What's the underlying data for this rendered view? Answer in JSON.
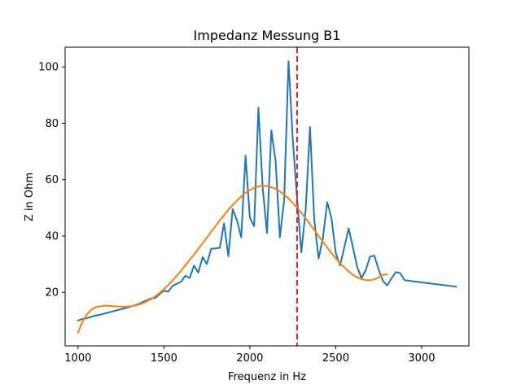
{
  "chart_data": {
    "type": "line",
    "title": "Impedanz Messung B1",
    "xlabel": "Frequenz in Hz",
    "ylabel": "Z in Ohm",
    "xlim": [
      925,
      3275
    ],
    "ylim": [
      1,
      107
    ],
    "xticks": [
      1000,
      1500,
      2000,
      2500,
      3000
    ],
    "yticks": [
      20,
      40,
      60,
      80,
      100
    ],
    "grid": false,
    "colors": {
      "measured": "#1f77b4",
      "fit": "#ff7f0e",
      "marker": "#d62728"
    },
    "vline": {
      "x": 2275,
      "style": "dashed"
    },
    "series": [
      {
        "points": [
          [
            1000,
            10
          ],
          [
            1025,
            10.5
          ],
          [
            1050,
            10.8
          ],
          [
            1075,
            11.3
          ],
          [
            1100,
            11.7
          ],
          [
            1125,
            12.0
          ],
          [
            1150,
            12.4
          ],
          [
            1175,
            12.8
          ],
          [
            1200,
            13.2
          ],
          [
            1225,
            13.6
          ],
          [
            1250,
            14.0
          ],
          [
            1275,
            14.4
          ],
          [
            1300,
            14.8
          ],
          [
            1325,
            15.3
          ],
          [
            1350,
            15.8
          ],
          [
            1375,
            16.5
          ],
          [
            1400,
            17.2
          ],
          [
            1425,
            17.8
          ],
          [
            1450,
            18.0
          ],
          [
            1475,
            19.4
          ],
          [
            1500,
            20.6
          ],
          [
            1525,
            20.2
          ],
          [
            1550,
            22.3
          ],
          [
            1575,
            23.0
          ],
          [
            1600,
            23.8
          ],
          [
            1625,
            25.9
          ],
          [
            1650,
            25.1
          ],
          [
            1675,
            29.5
          ],
          [
            1700,
            27.0
          ],
          [
            1725,
            32.5
          ],
          [
            1750,
            30.0
          ],
          [
            1775,
            35.5
          ],
          [
            1800,
            35.6
          ],
          [
            1825,
            35.8
          ],
          [
            1850,
            44.5
          ],
          [
            1875,
            32.8
          ],
          [
            1900,
            49.5
          ],
          [
            1925,
            45.6
          ],
          [
            1950,
            39.5
          ],
          [
            1975,
            68.5
          ],
          [
            2000,
            46.5
          ],
          [
            2025,
            43.5
          ],
          [
            2050,
            85.5
          ],
          [
            2075,
            57.0
          ],
          [
            2100,
            41.0
          ],
          [
            2125,
            77.5
          ],
          [
            2150,
            66.5
          ],
          [
            2175,
            39.5
          ],
          [
            2200,
            53.0
          ],
          [
            2225,
            102.0
          ],
          [
            2250,
            74.0
          ],
          [
            2275,
            53.5
          ],
          [
            2300,
            34.2
          ],
          [
            2325,
            49.5
          ],
          [
            2350,
            78.7
          ],
          [
            2375,
            46.0
          ],
          [
            2400,
            32.0
          ],
          [
            2425,
            39.0
          ],
          [
            2450,
            52.0
          ],
          [
            2475,
            46.5
          ],
          [
            2500,
            34.0
          ],
          [
            2525,
            29.5
          ],
          [
            2550,
            36.0
          ],
          [
            2575,
            42.7
          ],
          [
            2600,
            36.0
          ],
          [
            2625,
            29.0
          ],
          [
            2650,
            25.0
          ],
          [
            2675,
            28.0
          ],
          [
            2700,
            32.7
          ],
          [
            2725,
            33.0
          ],
          [
            2750,
            28.0
          ],
          [
            2775,
            24.0
          ],
          [
            2800,
            22.5
          ],
          [
            2825,
            25.0
          ],
          [
            2850,
            27.2
          ],
          [
            2875,
            26.8
          ],
          [
            2900,
            24.3
          ],
          [
            3200,
            22.0
          ]
        ]
      },
      {
        "points": [
          [
            1000,
            5.7
          ],
          [
            1025,
            9.5
          ],
          [
            1050,
            12.1
          ],
          [
            1075,
            13.7
          ],
          [
            1100,
            14.6
          ],
          [
            1125,
            15.0
          ],
          [
            1150,
            15.2
          ],
          [
            1175,
            15.2
          ],
          [
            1200,
            15.1
          ],
          [
            1225,
            15.0
          ],
          [
            1250,
            14.9
          ],
          [
            1275,
            14.9
          ],
          [
            1300,
            15.0
          ],
          [
            1325,
            15.2
          ],
          [
            1350,
            15.6
          ],
          [
            1375,
            16.1
          ],
          [
            1400,
            16.8
          ],
          [
            1425,
            17.6
          ],
          [
            1450,
            18.6
          ],
          [
            1475,
            19.8
          ],
          [
            1500,
            21.1
          ],
          [
            1525,
            22.6
          ],
          [
            1550,
            24.2
          ],
          [
            1575,
            25.9
          ],
          [
            1600,
            27.7
          ],
          [
            1625,
            29.6
          ],
          [
            1650,
            31.5
          ],
          [
            1675,
            33.4
          ],
          [
            1700,
            35.4
          ],
          [
            1725,
            37.4
          ],
          [
            1750,
            39.4
          ],
          [
            1775,
            41.5
          ],
          [
            1800,
            43.5
          ],
          [
            1825,
            45.5
          ],
          [
            1850,
            47.4
          ],
          [
            1875,
            49.3
          ],
          [
            1900,
            51.0
          ],
          [
            1925,
            52.6
          ],
          [
            1950,
            54.0
          ],
          [
            1975,
            55.3
          ],
          [
            2000,
            56.3
          ],
          [
            2025,
            57.1
          ],
          [
            2050,
            57.6
          ],
          [
            2075,
            57.8
          ],
          [
            2100,
            57.7
          ],
          [
            2125,
            57.3
          ],
          [
            2150,
            56.7
          ],
          [
            2175,
            55.8
          ],
          [
            2200,
            54.7
          ],
          [
            2225,
            53.3
          ],
          [
            2250,
            51.7
          ],
          [
            2275,
            50.0
          ],
          [
            2300,
            48.2
          ],
          [
            2325,
            46.2
          ],
          [
            2350,
            44.2
          ],
          [
            2375,
            42.1
          ],
          [
            2400,
            40.0
          ],
          [
            2425,
            37.9
          ],
          [
            2450,
            35.9
          ],
          [
            2475,
            33.9
          ],
          [
            2500,
            32.1
          ],
          [
            2525,
            30.3
          ],
          [
            2550,
            28.8
          ],
          [
            2575,
            27.4
          ],
          [
            2600,
            26.2
          ],
          [
            2625,
            25.3
          ],
          [
            2650,
            24.7
          ],
          [
            2675,
            24.3
          ],
          [
            2700,
            24.3
          ],
          [
            2725,
            24.6
          ],
          [
            2750,
            25.3
          ],
          [
            2775,
            26.3
          ],
          [
            2800,
            26.3
          ]
        ]
      }
    ]
  }
}
